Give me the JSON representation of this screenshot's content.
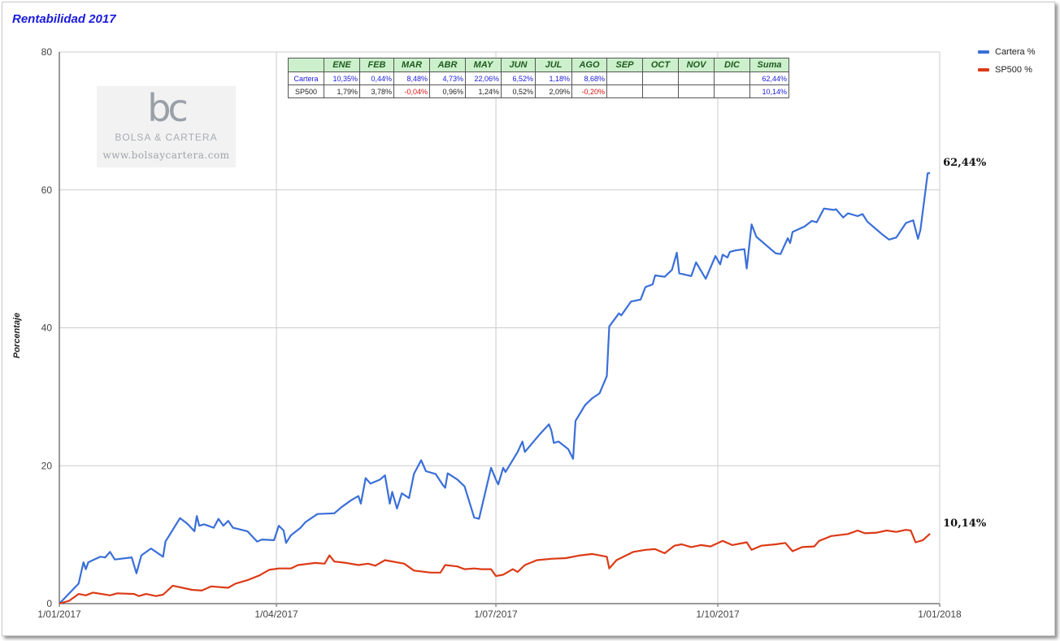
{
  "chart_title": "Rentabilidad 2017",
  "chart_data": {
    "type": "line",
    "title": "Rentabilidad 2017",
    "xlabel": "",
    "ylabel": "Porcentaje",
    "x_range": [
      "1/01/2017",
      "1/01/2018"
    ],
    "ylim": [
      0,
      80
    ],
    "yticks": [
      0,
      20,
      40,
      60,
      80
    ],
    "xticks": [
      "1/01/2017",
      "1/04/2017",
      "1/07/2017",
      "1/10/2017",
      "1/01/2018"
    ],
    "grid": true,
    "legend_position": "right",
    "series": [
      {
        "name": "Cartera %",
        "color": "#3a6fd8",
        "end_label": "62,44%",
        "points": [
          [
            "2017-01-01",
            0
          ],
          [
            "2017-01-09",
            2.9
          ],
          [
            "2017-01-11",
            6.0
          ],
          [
            "2017-01-12",
            5.0
          ],
          [
            "2017-01-13",
            6.0
          ],
          [
            "2017-01-18",
            6.8
          ],
          [
            "2017-01-20",
            6.7
          ],
          [
            "2017-01-22",
            7.5
          ],
          [
            "2017-01-24",
            6.4
          ],
          [
            "2017-01-31",
            6.7
          ],
          [
            "2017-02-02",
            4.4
          ],
          [
            "2017-02-04",
            7.0
          ],
          [
            "2017-02-08",
            8.0
          ],
          [
            "2017-02-13",
            6.8
          ],
          [
            "2017-02-14",
            9.0
          ],
          [
            "2017-02-20",
            12.4
          ],
          [
            "2017-02-23",
            11.6
          ],
          [
            "2017-02-26",
            10.5
          ],
          [
            "2017-02-27",
            12.7
          ],
          [
            "2017-02-28",
            11.3
          ],
          [
            "2017-03-02",
            11.5
          ],
          [
            "2017-03-06",
            11.0
          ],
          [
            "2017-03-08",
            12.3
          ],
          [
            "2017-03-10",
            11.3
          ],
          [
            "2017-03-12",
            12.0
          ],
          [
            "2017-03-14",
            11.0
          ],
          [
            "2017-03-20",
            10.5
          ],
          [
            "2017-03-24",
            9.0
          ],
          [
            "2017-03-26",
            9.3
          ],
          [
            "2017-03-31",
            9.2
          ],
          [
            "2017-04-02",
            11.3
          ],
          [
            "2017-04-04",
            10.6
          ],
          [
            "2017-04-05",
            8.8
          ],
          [
            "2017-04-07",
            9.9
          ],
          [
            "2017-04-11",
            11.0
          ],
          [
            "2017-04-13",
            11.8
          ],
          [
            "2017-04-18",
            13.0
          ],
          [
            "2017-04-25",
            13.1
          ],
          [
            "2017-04-28",
            14.0
          ],
          [
            "2017-05-02",
            15.0
          ],
          [
            "2017-05-05",
            15.6
          ],
          [
            "2017-05-06",
            14.5
          ],
          [
            "2017-05-08",
            18.2
          ],
          [
            "2017-05-10",
            17.4
          ],
          [
            "2017-05-14",
            18.0
          ],
          [
            "2017-05-16",
            18.6
          ],
          [
            "2017-05-18",
            14.5
          ],
          [
            "2017-05-19",
            16.2
          ],
          [
            "2017-05-21",
            13.8
          ],
          [
            "2017-05-23",
            16.0
          ],
          [
            "2017-05-26",
            15.3
          ],
          [
            "2017-05-28",
            18.8
          ],
          [
            "2017-05-31",
            20.8
          ],
          [
            "2017-06-02",
            19.2
          ],
          [
            "2017-06-06",
            18.8
          ],
          [
            "2017-06-09",
            17.2
          ],
          [
            "2017-06-10",
            16.8
          ],
          [
            "2017-06-11",
            18.9
          ],
          [
            "2017-06-15",
            18.0
          ],
          [
            "2017-06-18",
            17.0
          ],
          [
            "2017-06-22",
            12.5
          ],
          [
            "2017-06-24",
            12.3
          ],
          [
            "2017-06-29",
            19.7
          ],
          [
            "2017-07-01",
            18.0
          ],
          [
            "2017-07-02",
            17.3
          ],
          [
            "2017-07-04",
            19.7
          ],
          [
            "2017-07-05",
            19.1
          ],
          [
            "2017-07-10",
            22.0
          ],
          [
            "2017-07-12",
            23.5
          ],
          [
            "2017-07-13",
            22.0
          ],
          [
            "2017-07-19",
            24.5
          ],
          [
            "2017-07-23",
            26.0
          ],
          [
            "2017-07-24",
            25.1
          ],
          [
            "2017-07-25",
            23.3
          ],
          [
            "2017-07-27",
            23.5
          ],
          [
            "2017-07-31",
            22.4
          ],
          [
            "2017-08-02",
            21.0
          ],
          [
            "2017-08-03",
            26.5
          ],
          [
            "2017-08-07",
            28.8
          ],
          [
            "2017-08-10",
            29.8
          ],
          [
            "2017-08-13",
            30.5
          ],
          [
            "2017-08-16",
            33.0
          ],
          [
            "2017-08-17",
            40.2
          ],
          [
            "2017-08-21",
            42.1
          ],
          [
            "2017-08-22",
            41.8
          ],
          [
            "2017-08-26",
            43.8
          ],
          [
            "2017-08-30",
            44.1
          ],
          [
            "2017-09-01",
            45.9
          ],
          [
            "2017-09-04",
            46.3
          ],
          [
            "2017-09-05",
            47.6
          ],
          [
            "2017-09-09",
            47.4
          ],
          [
            "2017-09-12",
            48.4
          ],
          [
            "2017-09-14",
            50.9
          ],
          [
            "2017-09-15",
            47.9
          ],
          [
            "2017-09-20",
            47.5
          ],
          [
            "2017-09-22",
            49.5
          ],
          [
            "2017-09-26",
            47.1
          ],
          [
            "2017-09-30",
            50.4
          ],
          [
            "2017-10-02",
            49.2
          ],
          [
            "2017-10-03",
            50.6
          ],
          [
            "2017-10-05",
            50.2
          ],
          [
            "2017-10-06",
            51.0
          ],
          [
            "2017-10-08",
            51.2
          ],
          [
            "2017-10-12",
            51.4
          ],
          [
            "2017-10-13",
            48.6
          ],
          [
            "2017-10-15",
            55.0
          ],
          [
            "2017-10-17",
            53.2
          ],
          [
            "2017-10-22",
            51.7
          ],
          [
            "2017-10-25",
            50.8
          ],
          [
            "2017-10-27",
            50.7
          ],
          [
            "2017-10-30",
            53.0
          ],
          [
            "2017-10-31",
            52.3
          ],
          [
            "2017-11-01",
            53.9
          ],
          [
            "2017-11-06",
            54.7
          ],
          [
            "2017-11-09",
            55.5
          ],
          [
            "2017-11-11",
            55.3
          ],
          [
            "2017-11-14",
            57.3
          ],
          [
            "2017-11-18",
            57.1
          ],
          [
            "2017-11-19",
            57.2
          ],
          [
            "2017-11-22",
            56.0
          ],
          [
            "2017-11-24",
            56.6
          ],
          [
            "2017-11-28",
            56.2
          ],
          [
            "2017-11-30",
            56.5
          ],
          [
            "2017-12-02",
            55.4
          ],
          [
            "2017-12-06",
            54.2
          ],
          [
            "2017-12-08",
            53.6
          ],
          [
            "2017-12-11",
            52.8
          ],
          [
            "2017-12-14",
            53.1
          ],
          [
            "2017-12-18",
            55.2
          ],
          [
            "2017-12-21",
            55.6
          ],
          [
            "2017-12-23",
            52.9
          ],
          [
            "2017-12-24",
            54.2
          ],
          [
            "2017-12-27",
            62.4
          ],
          [
            "2017-12-28",
            62.44
          ]
        ]
      },
      {
        "name": "SP500 %",
        "color": "#dc3a16",
        "end_label": "10,14%",
        "points": [
          [
            "2017-01-01",
            0
          ],
          [
            "2017-01-05",
            0.4
          ],
          [
            "2017-01-09",
            1.4
          ],
          [
            "2017-01-12",
            1.2
          ],
          [
            "2017-01-15",
            1.6
          ],
          [
            "2017-01-22",
            1.2
          ],
          [
            "2017-01-25",
            1.5
          ],
          [
            "2017-02-01",
            1.4
          ],
          [
            "2017-02-03",
            1.1
          ],
          [
            "2017-02-06",
            1.4
          ],
          [
            "2017-02-10",
            1.1
          ],
          [
            "2017-02-13",
            1.3
          ],
          [
            "2017-02-17",
            2.6
          ],
          [
            "2017-02-25",
            2.0
          ],
          [
            "2017-03-01",
            1.9
          ],
          [
            "2017-03-05",
            2.5
          ],
          [
            "2017-03-12",
            2.3
          ],
          [
            "2017-03-15",
            2.9
          ],
          [
            "2017-03-20",
            3.4
          ],
          [
            "2017-03-25",
            4.1
          ],
          [
            "2017-03-29",
            4.9
          ],
          [
            "2017-04-02",
            5.1
          ],
          [
            "2017-04-07",
            5.1
          ],
          [
            "2017-04-10",
            5.6
          ],
          [
            "2017-04-17",
            5.9
          ],
          [
            "2017-04-21",
            5.8
          ],
          [
            "2017-04-23",
            7.0
          ],
          [
            "2017-04-25",
            6.1
          ],
          [
            "2017-04-30",
            5.9
          ],
          [
            "2017-05-05",
            5.6
          ],
          [
            "2017-05-09",
            5.8
          ],
          [
            "2017-05-12",
            5.5
          ],
          [
            "2017-05-16",
            6.3
          ],
          [
            "2017-05-24",
            5.8
          ],
          [
            "2017-05-28",
            4.8
          ],
          [
            "2017-06-04",
            4.5
          ],
          [
            "2017-06-08",
            4.5
          ],
          [
            "2017-06-10",
            5.6
          ],
          [
            "2017-06-15",
            5.4
          ],
          [
            "2017-06-18",
            5.0
          ],
          [
            "2017-06-22",
            5.1
          ],
          [
            "2017-06-25",
            5.0
          ],
          [
            "2017-06-29",
            5.0
          ],
          [
            "2017-07-01",
            4.0
          ],
          [
            "2017-07-04",
            4.2
          ],
          [
            "2017-07-08",
            5.0
          ],
          [
            "2017-07-10",
            4.6
          ],
          [
            "2017-07-13",
            5.6
          ],
          [
            "2017-07-18",
            6.3
          ],
          [
            "2017-07-24",
            6.5
          ],
          [
            "2017-07-30",
            6.6
          ],
          [
            "2017-08-05",
            7.0
          ],
          [
            "2017-08-10",
            7.2
          ],
          [
            "2017-08-13",
            7.0
          ],
          [
            "2017-08-16",
            6.8
          ],
          [
            "2017-08-17",
            5.1
          ],
          [
            "2017-08-20",
            6.3
          ],
          [
            "2017-08-24",
            7.0
          ],
          [
            "2017-08-27",
            7.5
          ],
          [
            "2017-09-01",
            7.8
          ],
          [
            "2017-09-05",
            7.9
          ],
          [
            "2017-09-09",
            7.3
          ],
          [
            "2017-09-13",
            8.4
          ],
          [
            "2017-09-16",
            8.6
          ],
          [
            "2017-09-20",
            8.2
          ],
          [
            "2017-09-24",
            8.5
          ],
          [
            "2017-09-28",
            8.3
          ],
          [
            "2017-10-03",
            9.1
          ],
          [
            "2017-10-07",
            8.5
          ],
          [
            "2017-10-13",
            8.9
          ],
          [
            "2017-10-15",
            7.8
          ],
          [
            "2017-10-19",
            8.4
          ],
          [
            "2017-10-25",
            8.6
          ],
          [
            "2017-10-29",
            8.8
          ],
          [
            "2017-11-01",
            7.6
          ],
          [
            "2017-11-05",
            8.2
          ],
          [
            "2017-11-10",
            8.3
          ],
          [
            "2017-11-12",
            9.1
          ],
          [
            "2017-11-17",
            9.8
          ],
          [
            "2017-11-24",
            10.1
          ],
          [
            "2017-11-28",
            10.6
          ],
          [
            "2017-12-01",
            10.2
          ],
          [
            "2017-12-06",
            10.3
          ],
          [
            "2017-12-10",
            10.6
          ],
          [
            "2017-12-14",
            10.4
          ],
          [
            "2017-12-18",
            10.7
          ],
          [
            "2017-12-20",
            10.6
          ],
          [
            "2017-12-22",
            8.9
          ],
          [
            "2017-12-25",
            9.2
          ],
          [
            "2017-12-28",
            10.14
          ]
        ]
      }
    ]
  },
  "watermark": {
    "mark": "bc",
    "name": "BOLSA & CARTERA",
    "url": "www.bolsaycartera.com"
  },
  "table": {
    "headers": [
      "",
      "ENE",
      "FEB",
      "MAR",
      "ABR",
      "MAY",
      "JUN",
      "JUL",
      "AGO",
      "SEP",
      "OCT",
      "NOV",
      "DIC",
      "Suma"
    ],
    "rows": [
      {
        "label": "Cartera",
        "cells": [
          "10,35%",
          "0,44%",
          "8,48%",
          "4,73%",
          "22,06%",
          "6,52%",
          "1,18%",
          "8,68%",
          "",
          "",
          "",
          "",
          "62,44%"
        ]
      },
      {
        "label": "SP500",
        "cells": [
          "1,79%",
          "3,78%",
          "-0,04%",
          "0,96%",
          "1,24%",
          "0,52%",
          "2,09%",
          "-0,20%",
          "",
          "",
          "",
          "",
          "10,14%"
        ]
      }
    ]
  }
}
